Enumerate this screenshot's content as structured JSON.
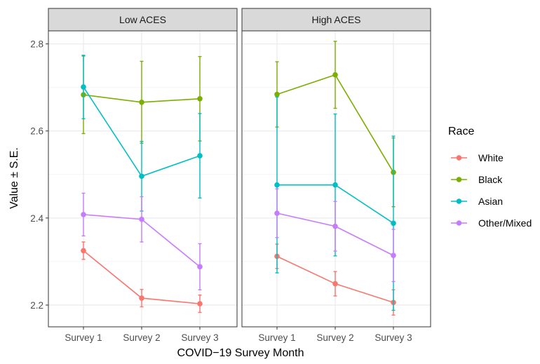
{
  "chart_data": {
    "type": "line",
    "xlabel": "COVID−19 Survey Month",
    "ylabel": "Value ± S.E.",
    "x_categories": [
      "Survey 1",
      "Survey 2",
      "Survey 3"
    ],
    "ylim": [
      2.15,
      2.83
    ],
    "yticks": [
      "2.2",
      "2.4",
      "2.6",
      "2.8"
    ],
    "grid": true,
    "legend": {
      "title": "Race",
      "position": "right"
    },
    "panels": [
      {
        "label": "Low ACES",
        "series": [
          {
            "name": "White",
            "color": "#F8766D",
            "values": [
              2.325,
              2.216,
              2.203
            ],
            "se": [
              0.02,
              0.02,
              0.02
            ]
          },
          {
            "name": "Black",
            "color": "#7CAE00",
            "values": [
              2.683,
              2.666,
              2.674
            ],
            "se": [
              0.089,
              0.094,
              0.097
            ]
          },
          {
            "name": "Asian",
            "color": "#00BFC4",
            "values": [
              2.701,
              2.496,
              2.543
            ],
            "se": [
              0.073,
              0.08,
              0.097
            ]
          },
          {
            "name": "Other/Mixed",
            "color": "#C77CFF",
            "values": [
              2.408,
              2.397,
              2.288
            ],
            "se": [
              0.049,
              0.052,
              0.053
            ]
          }
        ]
      },
      {
        "label": "High ACES",
        "series": [
          {
            "name": "White",
            "color": "#F8766D",
            "values": [
              2.312,
              2.249,
              2.206
            ],
            "se": [
              0.028,
              0.028,
              0.029
            ]
          },
          {
            "name": "Black",
            "color": "#7CAE00",
            "values": [
              2.684,
              2.729,
              2.505
            ],
            "se": [
              0.075,
              0.077,
              0.079
            ]
          },
          {
            "name": "Asian",
            "color": "#00BFC4",
            "values": [
              2.476,
              2.476,
              2.388
            ],
            "se": [
              0.202,
              0.163,
              0.2
            ]
          },
          {
            "name": "Other/Mixed",
            "color": "#C77CFF",
            "values": [
              2.411,
              2.381,
              2.314
            ],
            "se": [
              0.056,
              0.057,
              0.06
            ]
          }
        ]
      }
    ]
  }
}
